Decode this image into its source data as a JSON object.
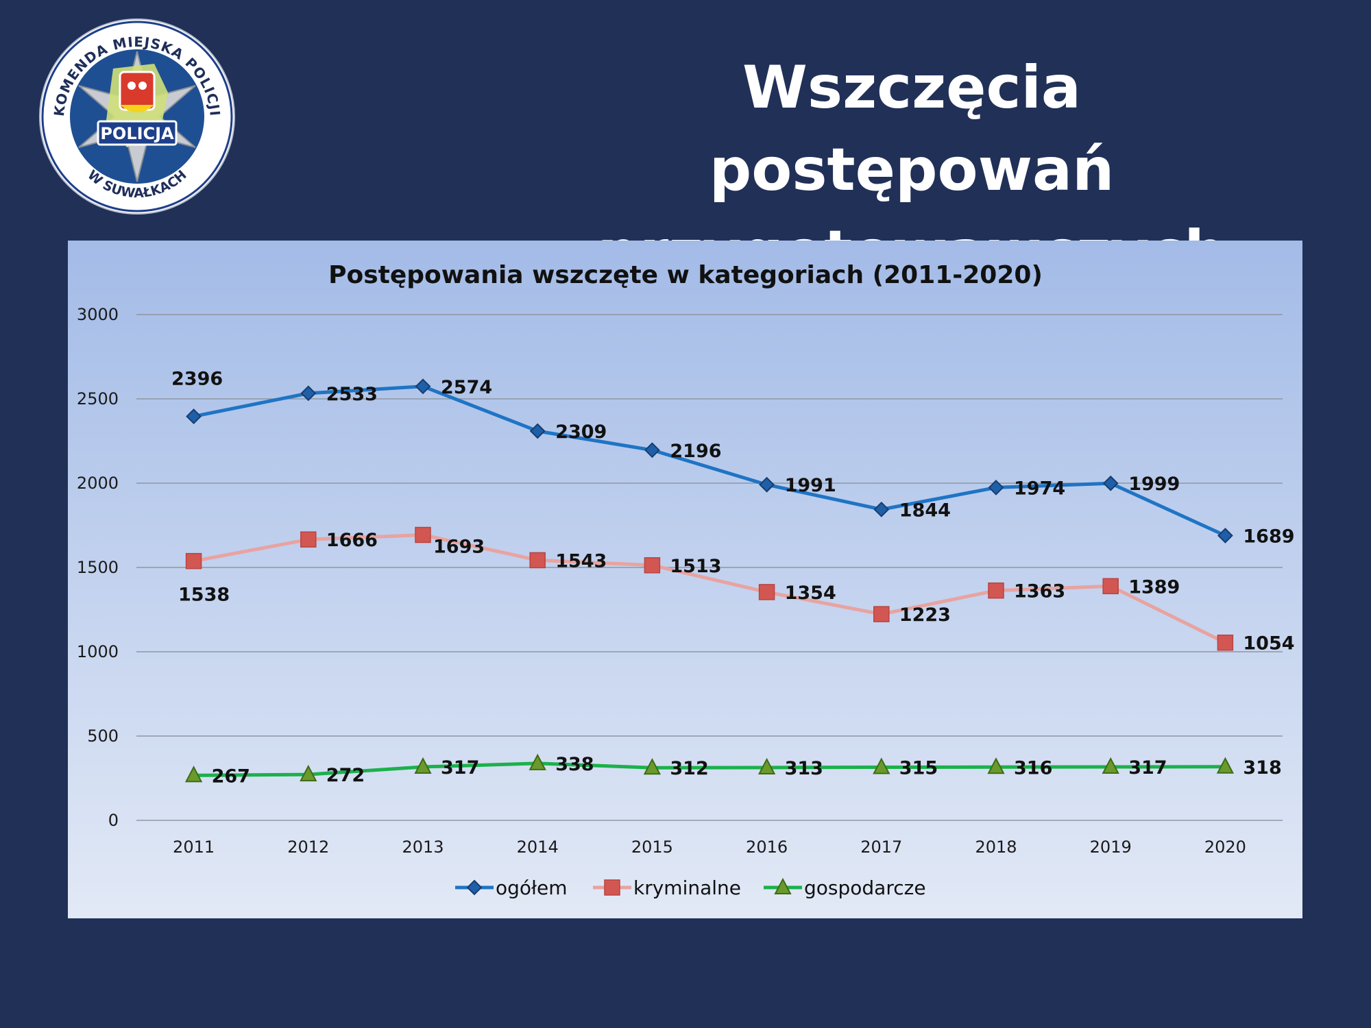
{
  "slide": {
    "title_line1": "Wszczęcia postępowań",
    "title_line2": "przygotowawczych"
  },
  "logo": {
    "top_text": "KOMENDA MIEJSKA POLICJI",
    "bottom_text": "W SUWAŁKACH",
    "badge_text": "POLICJA"
  },
  "colors": {
    "background": "#213057",
    "ogolem": "#1f74c4",
    "kryminalne_line": "#e8a3a0",
    "kryminalne_marker": "#d25752",
    "gospodarcze_line": "#1bb14b",
    "gospodarcze_marker": "#6b9a2c"
  },
  "chart_data": {
    "type": "line",
    "title": "Postępowania wszczęte w kategoriach (2011-2020)",
    "categories": [
      "2011",
      "2012",
      "2013",
      "2014",
      "2015",
      "2016",
      "2017",
      "2018",
      "2019",
      "2020"
    ],
    "yticks": [
      "0",
      "500",
      "1000",
      "1500",
      "2000",
      "2500",
      "3000"
    ],
    "ylim": [
      0,
      3000
    ],
    "grid": true,
    "legend_position": "bottom",
    "series": [
      {
        "name": "ogółem",
        "values": [
          2396,
          2533,
          2574,
          2309,
          2196,
          1991,
          1844,
          1974,
          1999,
          1689
        ]
      },
      {
        "name": "kryminalne",
        "values": [
          1538,
          1666,
          1693,
          1543,
          1513,
          1354,
          1223,
          1363,
          1389,
          1054
        ]
      },
      {
        "name": "gospodarcze",
        "values": [
          267,
          272,
          317,
          338,
          312,
          313,
          315,
          316,
          317,
          318
        ]
      }
    ],
    "labels": [
      [
        "2396",
        "2533",
        "2574",
        "2309",
        "2196",
        "1991",
        "1844",
        "1974",
        "1999",
        "1689"
      ],
      [
        "1538",
        "1666",
        "1693",
        "1543",
        "1513",
        "1354",
        "1223",
        "1363",
        "1389",
        "1054"
      ],
      [
        "267",
        "272",
        "317",
        "338",
        "312",
        "313",
        "315",
        "316",
        "317",
        "318"
      ]
    ]
  }
}
